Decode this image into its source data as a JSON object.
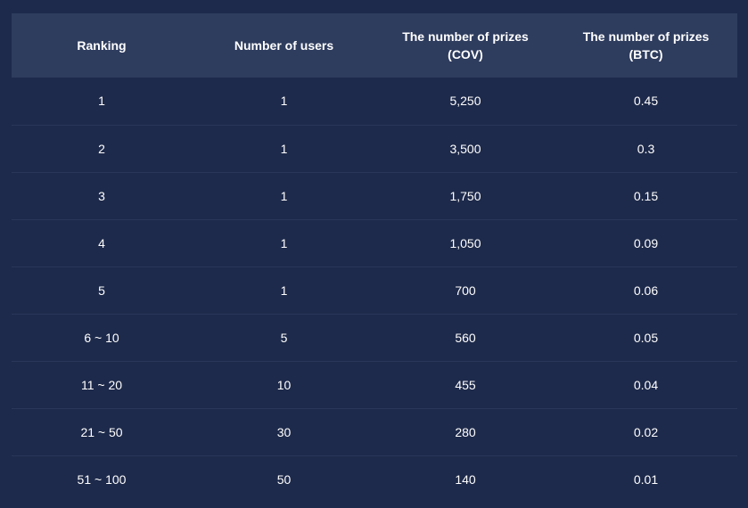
{
  "table": {
    "headers": [
      {
        "line1": "Ranking",
        "line2": ""
      },
      {
        "line1": "Number of users",
        "line2": ""
      },
      {
        "line1": "The number of prizes",
        "line2": "(COV)"
      },
      {
        "line1": "The number of prizes",
        "line2": "(BTC)"
      }
    ],
    "rows": [
      [
        "1",
        "1",
        "5,250",
        "0.45"
      ],
      [
        "2",
        "1",
        "3,500",
        "0.3"
      ],
      [
        "3",
        "1",
        "1,750",
        "0.15"
      ],
      [
        "4",
        "1",
        "1,050",
        "0.09"
      ],
      [
        "5",
        "1",
        "700",
        "0.06"
      ],
      [
        "6 ~ 10",
        "5",
        "560",
        "0.05"
      ],
      [
        "11 ~ 20",
        "10",
        "455",
        "0.04"
      ],
      [
        "21 ~ 50",
        "30",
        "280",
        "0.02"
      ],
      [
        "51 ~ 100",
        "50",
        "140",
        "0.01"
      ]
    ]
  },
  "colors": {
    "background": "#1e2a4b",
    "header_background": "#2e3c5e",
    "row_divider": "#2a365a",
    "text": "#ffffff"
  }
}
